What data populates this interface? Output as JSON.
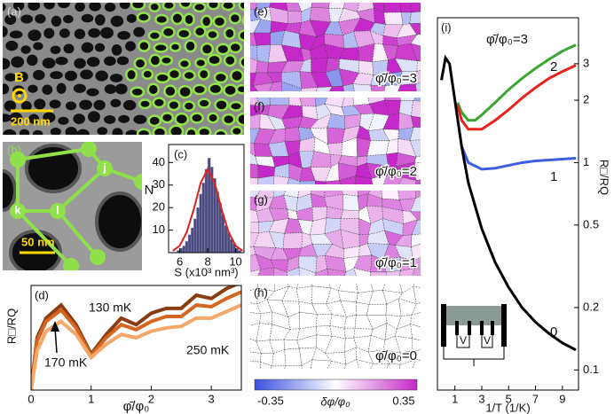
{
  "images": {
    "a": {
      "label": "(a)",
      "marker": "B",
      "scale_bar": "200 nm"
    },
    "b": {
      "label": "(b)",
      "sites": [
        "j",
        "k",
        "l"
      ],
      "scale_bar": "50 nm"
    },
    "maps": [
      {
        "label": "(e)",
        "caption": "φ̄/φ₀=3"
      },
      {
        "label": "(f)",
        "caption": "φ̄/φ₀=2"
      },
      {
        "label": "(g)",
        "caption": "φ̄/φ₀=1"
      },
      {
        "label": "(h)",
        "caption": "φ̄/φ₀=0"
      }
    ],
    "colorbar": {
      "ticks": [
        -0.35,
        0.35
      ],
      "label": "δφ/φ₀"
    }
  },
  "chart_data": [
    {
      "type": "histogram",
      "label": "(c)",
      "xlabel": "S (x10³ nm³)",
      "ylabel": "N",
      "color": "#4b4b7e",
      "bins": [
        5.8,
        6.0,
        6.2,
        6.4,
        6.6,
        6.8,
        7.0,
        7.2,
        7.4,
        7.6,
        7.8,
        8.0,
        8.2,
        8.4,
        8.6,
        8.8,
        9.0,
        9.2,
        9.4,
        9.6,
        9.8,
        10.0,
        10.2,
        10.4
      ],
      "counts": [
        1,
        2,
        3,
        5,
        8,
        11,
        15,
        20,
        26,
        31,
        37,
        42,
        38,
        33,
        27,
        22,
        17,
        12,
        9,
        6,
        4,
        2,
        1
      ],
      "fit": {
        "color": "#e32119",
        "x": [
          5.5,
          6,
          6.5,
          7,
          7.5,
          8,
          8.5,
          9,
          9.5,
          10,
          10.5
        ],
        "values": [
          0.8,
          3.1,
          9.1,
          19.2,
          31,
          37,
          31,
          19.2,
          9.1,
          3.1,
          0.8
        ]
      },
      "xlim": [
        5.2,
        10.6
      ],
      "xticks": [
        6,
        8,
        10
      ],
      "ylim": [
        0,
        48
      ],
      "yticks": [
        10,
        20,
        30,
        40
      ]
    },
    {
      "type": "line",
      "label": "(d)",
      "xlabel": "φ̄/φ₀",
      "ylabel": "R□/RQ",
      "x": [
        0,
        0.1,
        0.25,
        0.5,
        0.75,
        1,
        1.25,
        1.5,
        1.75,
        2,
        2.25,
        2.5,
        2.75,
        3,
        3.25,
        3.5
      ],
      "series": [
        {
          "name": "130 mK",
          "color": "#8b3d12",
          "values": [
            0,
            1.6,
            2.2,
            2.6,
            2.0,
            1.1,
            1.7,
            2.2,
            2.0,
            2.35,
            2.5,
            2.5,
            2.9,
            2.8,
            3.1,
            3.3
          ]
        },
        {
          "name": "170 mK",
          "color": "#d4661f",
          "values": [
            0,
            1.5,
            2.1,
            2.45,
            1.9,
            1.05,
            1.6,
            2.0,
            1.85,
            2.1,
            2.25,
            2.25,
            2.6,
            2.55,
            2.8,
            3.0
          ]
        },
        {
          "name": "250 mK",
          "color": "#f4a766",
          "values": [
            0,
            1.2,
            1.8,
            2.1,
            1.7,
            1.0,
            1.4,
            1.7,
            1.6,
            1.8,
            1.9,
            1.95,
            2.2,
            2.2,
            2.4,
            2.6
          ]
        }
      ],
      "xlim": [
        0,
        3.5
      ],
      "xticks": [
        0,
        1,
        2,
        3
      ],
      "ylim": [
        0,
        3.2
      ]
    },
    {
      "type": "line",
      "label": "(i)",
      "xlabel": "1/T (1/K)",
      "ylabel": "R□/RQ",
      "log_y": true,
      "series": [
        {
          "name": "φ̄/φ₀=3",
          "color": "#3aa632",
          "x": [
            1.2,
            1.5,
            2,
            2.5,
            3,
            4,
            5,
            6,
            7,
            8,
            9,
            10
          ],
          "values": [
            1.95,
            1.75,
            1.6,
            1.6,
            1.7,
            1.95,
            2.25,
            2.55,
            2.85,
            3.15,
            3.45,
            3.7
          ]
        },
        {
          "name": "2",
          "color": "#e8231b",
          "x": [
            1.2,
            1.5,
            2,
            3,
            4,
            5,
            6,
            7,
            8,
            9,
            10
          ],
          "values": [
            1.9,
            1.6,
            1.45,
            1.45,
            1.6,
            1.8,
            2.05,
            2.3,
            2.55,
            2.75,
            2.95
          ]
        },
        {
          "name": "1",
          "color": "#3b5fe0",
          "x": [
            1.5,
            2,
            3,
            4,
            5,
            6,
            7,
            8,
            9,
            10
          ],
          "values": [
            1.2,
            1.0,
            0.93,
            0.94,
            0.97,
            1.0,
            1.02,
            1.03,
            1.04,
            1.05
          ]
        },
        {
          "name": "0",
          "color": "#000000",
          "x": [
            0,
            0.3,
            0.6,
            1,
            1.5,
            2,
            3,
            4,
            5,
            6,
            7,
            8,
            9,
            10
          ],
          "values": [
            2.5,
            3.2,
            3.0,
            2.0,
            1.2,
            0.8,
            0.48,
            0.33,
            0.25,
            0.2,
            0.17,
            0.15,
            0.135,
            0.125
          ]
        }
      ],
      "inset_labels": [
        "V",
        "V",
        "I"
      ],
      "xlim": [
        -0.3,
        10.2
      ],
      "xticks": [
        1,
        3,
        5,
        7,
        9
      ],
      "ylim": [
        0.08,
        5
      ],
      "yticks": [
        0.1,
        0.2,
        0.5,
        1,
        2,
        3
      ]
    }
  ]
}
